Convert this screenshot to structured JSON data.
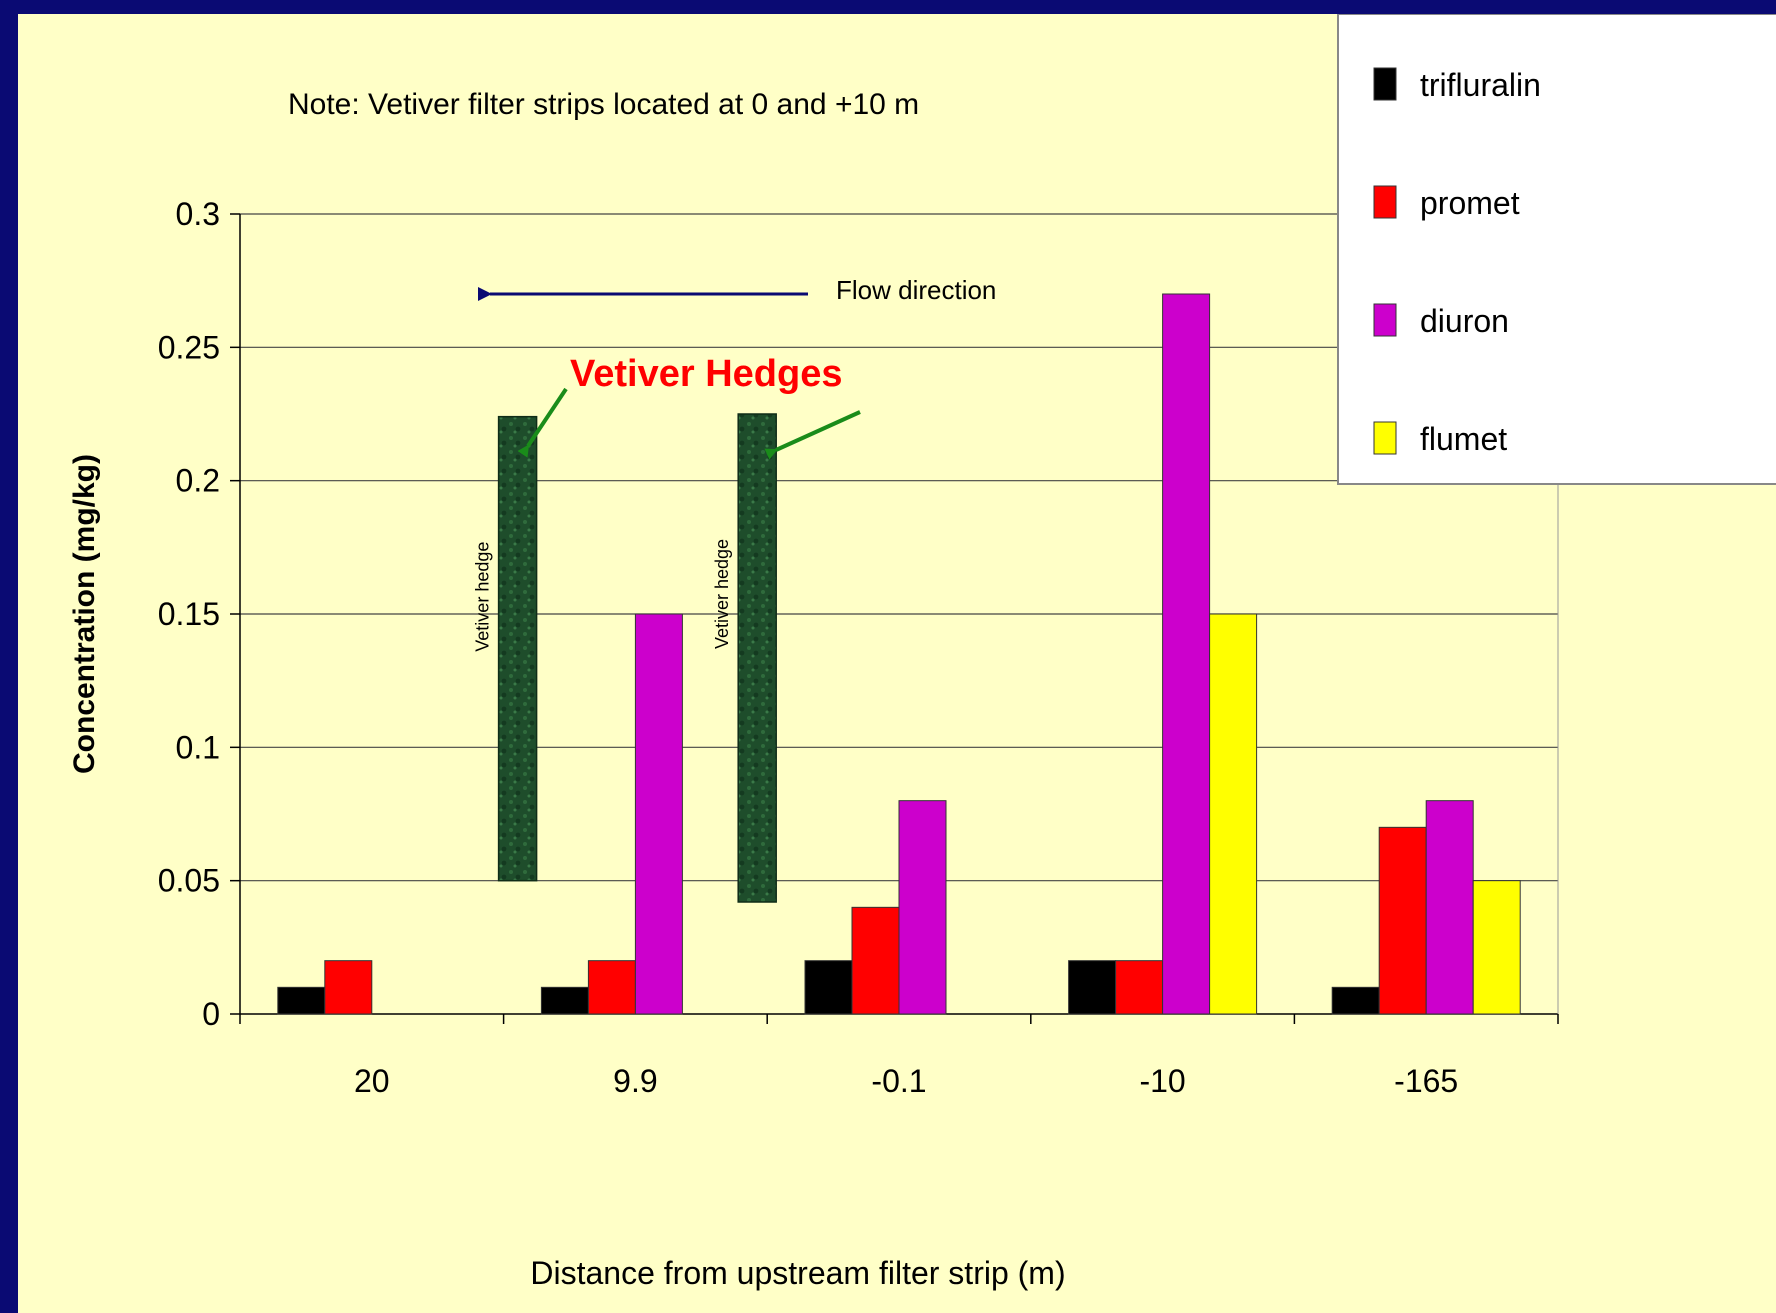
{
  "chart_data": {
    "type": "bar",
    "note": "Note: Vetiver filter strips located at 0 and +10 m",
    "xlabel": "Distance from upstream  filter strip (m)",
    "ylabel": "Concentration (mg/kg)",
    "ylim": [
      0,
      0.3
    ],
    "yticks": [
      "0",
      "0.05",
      "0.1",
      "0.15",
      "0.2",
      "0.25",
      "0.3"
    ],
    "categories": [
      "20",
      "9.9",
      "-0.1",
      "-10",
      "-165"
    ],
    "grid": true,
    "legend_position": "top-right",
    "series": [
      {
        "name": "trifluralin",
        "color": "#000000",
        "values": [
          0.01,
          0.01,
          0.02,
          0.02,
          0.01
        ]
      },
      {
        "name": "promet",
        "color": "#ff0000",
        "values": [
          0.02,
          0.02,
          0.04,
          0.02,
          0.07
        ]
      },
      {
        "name": "diuron",
        "color": "#cc00cc",
        "values": [
          0,
          0.15,
          0.08,
          0.27,
          0.08
        ]
      },
      {
        "name": "flumet",
        "color": "#ffff00",
        "values": [
          0,
          0,
          0,
          0.15,
          0.05
        ]
      }
    ],
    "flow_label": "Flow direction",
    "hedge_label": "Vetiver hedge",
    "hedges": [
      {
        "between": [
          "20",
          "9.9"
        ],
        "y_range": [
          0.05,
          0.224
        ]
      },
      {
        "between": [
          "9.9",
          "-0.1"
        ],
        "y_range": [
          0.042,
          0.225
        ]
      }
    ],
    "annotation": {
      "text": "Vetiver Hedges",
      "color": "#ff0000"
    }
  }
}
